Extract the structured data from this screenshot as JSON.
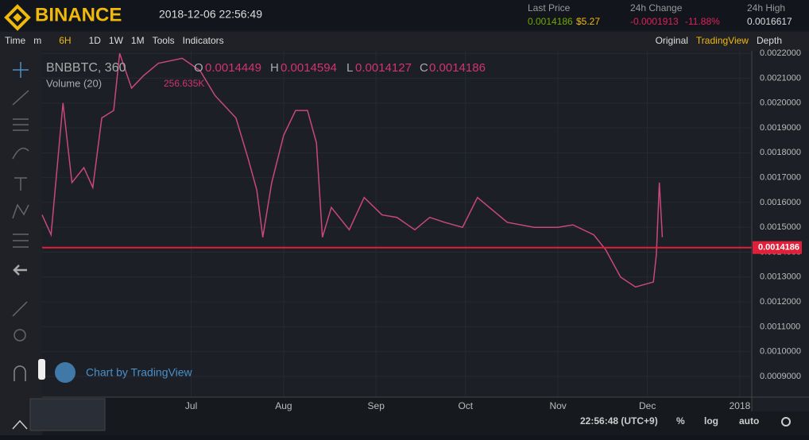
{
  "header": {
    "brand": "BINANCE",
    "datetime": "2018-12-06 22:56:49",
    "last_price_label": "Last Price",
    "last_price": "0.0014186",
    "last_price_usd": "$5.27",
    "change_label": "24h Change",
    "change": "-0.0001913",
    "change_pct": "-11.88%",
    "high_label": "24h High",
    "high": "0.0016617"
  },
  "toolbar": {
    "items": [
      "Time",
      "m",
      "6H",
      "1D",
      "1W",
      "1M",
      "Tools",
      "Indicators"
    ],
    "views": [
      "Original",
      "TradingView",
      "Depth"
    ]
  },
  "legend": {
    "symbol": "BNBBTC, 360",
    "o_label": "O",
    "o": "0.0014449",
    "h_label": "H",
    "h": "0.0014594",
    "l_label": "L",
    "l": "0.0014127",
    "c_label": "C",
    "c": "0.0014186",
    "volume": "Volume (20)",
    "volume_value": "256.635K",
    "credit": "Chart by TradingView"
  },
  "footer": {
    "time": "22:56:48 (UTC+9)",
    "options": [
      "%",
      "log",
      "auto"
    ]
  },
  "chart_data": {
    "type": "line",
    "x": [
      -20,
      -17,
      -13,
      -10,
      -6,
      -3,
      0,
      4,
      6,
      10,
      14,
      19,
      27,
      33,
      38,
      45,
      49,
      52,
      54,
      57,
      61,
      65,
      69,
      72,
      74,
      77,
      83,
      88,
      94,
      99,
      105,
      110,
      115,
      121,
      126,
      131,
      136,
      145,
      153,
      158,
      165,
      169,
      174,
      179,
      185,
      186,
      187,
      188
    ],
    "series": [
      {
        "color": "#c8477e",
        "values": [
          0.00155,
          0.00147,
          0.002,
          0.00168,
          0.00174,
          0.00166,
          0.00194,
          0.00197,
          0.0022,
          0.00206,
          0.00211,
          0.00216,
          0.00218,
          0.00213,
          0.00203,
          0.00194,
          0.00178,
          0.00165,
          0.00146,
          0.00168,
          0.00187,
          0.00197,
          0.00197,
          0.00184,
          0.00146,
          0.00158,
          0.00149,
          0.00162,
          0.00155,
          0.00154,
          0.00149,
          0.00154,
          0.00152,
          0.0015,
          0.00162,
          0.00157,
          0.00152,
          0.0015,
          0.0015,
          0.00151,
          0.00147,
          0.00141,
          0.0013,
          0.00126,
          0.00128,
          0.00139,
          0.00168,
          0.00146
        ]
      }
    ],
    "xlim": [
      -20,
      218
    ],
    "xticks": [
      {
        "value": 30,
        "label": "Jul"
      },
      {
        "value": 61,
        "label": "Aug"
      },
      {
        "value": 92,
        "label": "Sep"
      },
      {
        "value": 122,
        "label": "Oct"
      },
      {
        "value": 153,
        "label": "Nov"
      },
      {
        "value": 183,
        "label": "Dec"
      },
      {
        "value": 214,
        "label": "2018"
      }
    ],
    "ylim": [
      0.000817,
      0.00221
    ],
    "yticks": [
      {
        "value": 0.0009,
        "label": "0.0009000"
      },
      {
        "value": 0.001,
        "label": "0.0010000"
      },
      {
        "value": 0.0011,
        "label": "0.0011000"
      },
      {
        "value": 0.0012,
        "label": "0.0012000"
      },
      {
        "value": 0.0013,
        "label": "0.0013000"
      },
      {
        "value": 0.0014,
        "label": "0.0014000"
      },
      {
        "value": 0.0015,
        "label": "0.0015000"
      },
      {
        "value": 0.0016,
        "label": "0.0016000"
      },
      {
        "value": 0.0017,
        "label": "0.0017000"
      },
      {
        "value": 0.0018,
        "label": "0.0018000"
      },
      {
        "value": 0.0019,
        "label": "0.0019000"
      },
      {
        "value": 0.002,
        "label": "0.0020000"
      },
      {
        "value": 0.0021,
        "label": "0.0021000"
      },
      {
        "value": 0.0022,
        "label": "0.0022000"
      }
    ],
    "current_price": {
      "value": 0.0014186,
      "label": "0.0014186"
    },
    "current_color": "#e0203a",
    "grid": true
  }
}
